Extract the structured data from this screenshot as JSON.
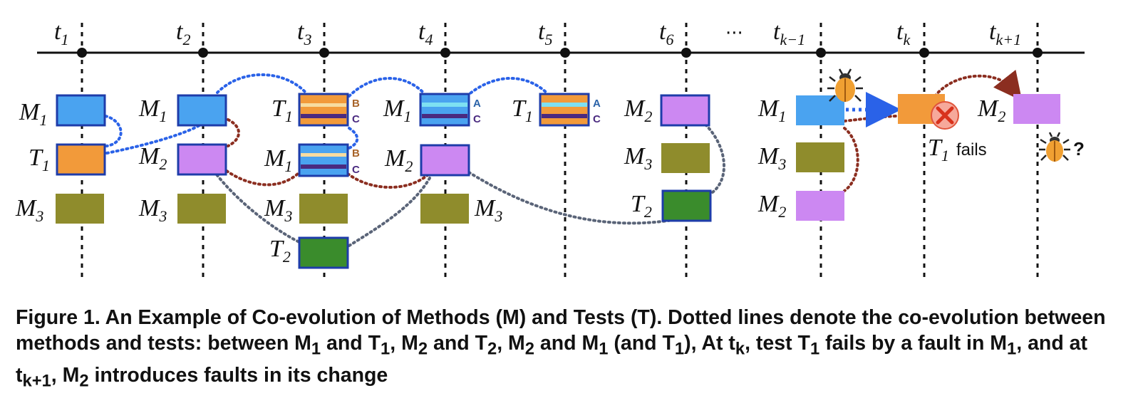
{
  "colors": {
    "method_m1": "#4aa3f0",
    "method_m2": "#cc88f2",
    "method_m3": "#8f8c2c",
    "test_t1": "#f29a3a",
    "test_t2": "#3a8c2c",
    "border": "#1e3caa",
    "link_m1_t1": "#2a62e8",
    "link_m2_m1": "#8b2e20",
    "link_m2_t2": "#5a6478"
  },
  "timeline": {
    "ellipsis": "···",
    "points": [
      {
        "base": "t",
        "sub": "1"
      },
      {
        "base": "t",
        "sub": "2"
      },
      {
        "base": "t",
        "sub": "3"
      },
      {
        "base": "t",
        "sub": "4"
      },
      {
        "base": "t",
        "sub": "5"
      },
      {
        "base": "t",
        "sub": "6"
      },
      {
        "base": "t",
        "sub": "k−1"
      },
      {
        "base": "t",
        "sub": "k"
      },
      {
        "base": "t",
        "sub": "k+1"
      }
    ]
  },
  "labels": {
    "m": "M",
    "t": "T",
    "s1": "1",
    "s2": "2",
    "s3": "3",
    "a": "A",
    "b": "B",
    "c": "C",
    "fails": "fails",
    "question": "?"
  },
  "icons": [
    "bug-icon",
    "fail-x-icon",
    "arrow-icon"
  ],
  "caption": {
    "prefix": "Figure 1. An Example of Co-evolution of Methods (M) and Tests (T). Dotted lines denote the co-evolution between methods and tests: between M",
    "s1": "1",
    "and1": " and T",
    "s2": "1",
    "comma1": ", M",
    "s3": "2",
    "and2": " and T",
    "s4": "2",
    "comma2": ", M",
    "s5": "2",
    "and3": " and M",
    "s6": "1",
    "paren": " (and T",
    "s7": "1",
    "at": "), At t",
    "s8": "k",
    "test": ", test T",
    "s9": "1",
    "fault": " fails by a fault in M",
    "s10": "1",
    "andat": ", and at t",
    "s11": "k+1",
    "m2": ", M",
    "s12": "2",
    "end": " introduces faults in its change"
  }
}
